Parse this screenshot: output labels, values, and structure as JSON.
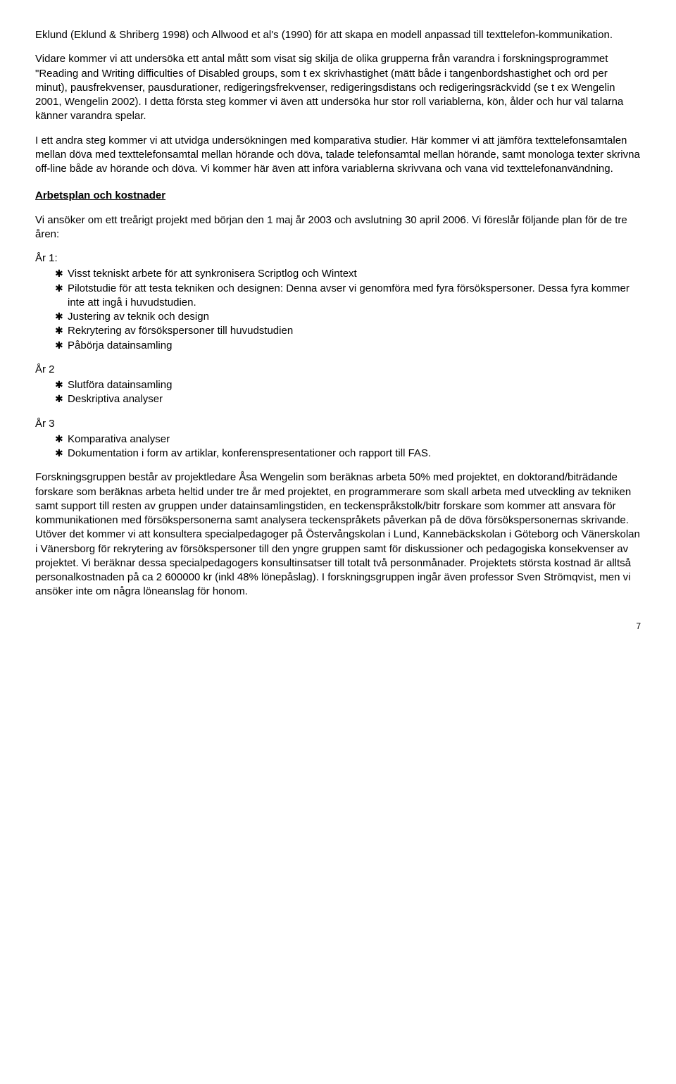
{
  "para1": "Eklund (Eklund & Shriberg 1998) och Allwood et al's (1990) för att skapa en modell anpassad till texttelefon-kommunikation.",
  "para2": "Vidare kommer vi att undersöka ett antal mått som visat sig skilja de olika grupperna från varandra i forskningsprogrammet \"Reading and Writing difficulties of Disabled groups, som t ex skrivhastighet (mätt både i tangenbordshastighet och ord per minut), pausfrekvenser, pausdurationer, redigeringsfrekvenser, redigeringsdistans och redigeringsräckvidd (se t ex Wengelin 2001, Wengelin 2002). I detta första steg kommer vi även att undersöka hur stor roll variablerna, kön, ålder och hur väl talarna känner varandra spelar.",
  "para3": "I ett andra steg kommer vi att utvidga undersökningen med komparativa studier. Här kommer vi att jämföra texttelefonsamtalen mellan döva med texttelefonsamtal mellan hörande och döva, talade telefonsamtal mellan hörande, samt monologa texter skrivna off-line både av hörande och döva. Vi kommer här även att införa variablerna skrivvana och vana vid texttelefonanvändning.",
  "heading1": "Arbetsplan och kostnader",
  "para4": "Vi ansöker om ett treårigt projekt med början den 1 maj år 2003 och avslutning 30 april 2006. Vi föreslår följande plan för de tre åren:",
  "year1_label": "År 1:",
  "year1_items": [
    "Visst tekniskt arbete för att synkronisera Scriptlog och Wintext",
    "Pilotstudie för att testa tekniken och designen: Denna avser vi genomföra med fyra försökspersoner. Dessa fyra kommer inte att ingå i huvudstudien.",
    "Justering av teknik och design",
    "Rekrytering av försökspersoner till huvudstudien",
    "Påbörja datainsamling"
  ],
  "year2_label": "År 2",
  "year2_items": [
    "Slutföra datainsamling",
    "Deskriptiva analyser"
  ],
  "year3_label": "År 3",
  "year3_items": [
    "Komparativa analyser",
    "Dokumentation i form av artiklar, konferenspresentationer och rapport till FAS."
  ],
  "para5": "Forskningsgruppen består av projektledare Åsa Wengelin som beräknas arbeta 50% med projektet, en doktorand/biträdande forskare som beräknas arbeta heltid under tre år med projektet, en programmerare som skall arbeta med utveckling av tekniken samt support till resten av gruppen under datainsamlingstiden, en teckenspråkstolk/bitr forskare som kommer att ansvara för kommunikationen med försökspersonerna samt analysera teckenspråkets påverkan på de döva försökspersonernas skrivande. Utöver det kommer vi att konsultera specialpedagoger på Östervångskolan i Lund, Kannebäckskolan i Göteborg och Vänerskolan i Vänersborg för rekrytering av försökspersoner till den yngre gruppen samt för diskussioner och pedagogiska konsekvenser av projektet. Vi beräknar dessa specialpedagogers konsultinsatser till totalt två personmånader. Projektets största kostnad är alltså personalkostnaden på ca 2 600000 kr (inkl 48% lönepåslag). I forskningsgruppen ingår även professor Sven Strömqvist, men vi ansöker inte om några löneanslag för honom.",
  "page_number": "7"
}
